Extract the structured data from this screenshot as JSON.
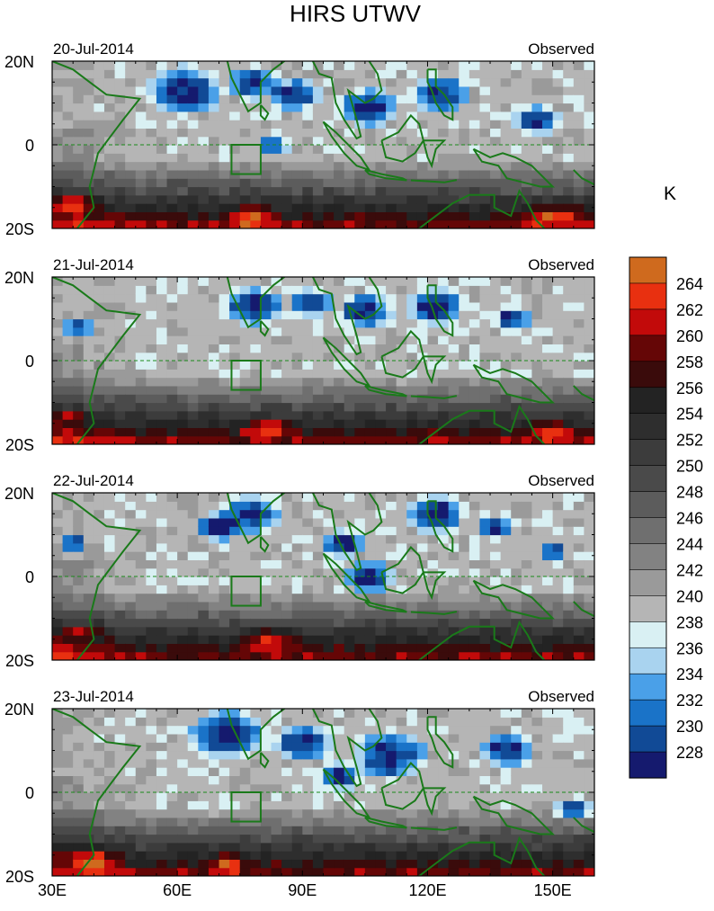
{
  "chart_data": {
    "type": "heatmap",
    "title": "HIRS UTWV",
    "colorbar": {
      "unit_label": "K",
      "levels": [
        "228",
        "230",
        "232",
        "234",
        "236",
        "238",
        "240",
        "242",
        "244",
        "246",
        "248",
        "250",
        "252",
        "254",
        "256",
        "258",
        "260",
        "262",
        "264"
      ],
      "colors": [
        "#151a6e",
        "#114a96",
        "#1a73c8",
        "#4aa0e8",
        "#a9d3ef",
        "#d9f0f3",
        "#b5b5b5",
        "#9a9a9a",
        "#828282",
        "#6f6f6f",
        "#5c5c5c",
        "#4a4a4a",
        "#3c3c3c",
        "#2e2e2e",
        "#232323",
        "#3a0b0b",
        "#650606",
        "#c20a0a",
        "#e83010",
        "#cf6a1e"
      ]
    },
    "x_axis": {
      "range": [
        30,
        160
      ],
      "ticks": [
        30,
        60,
        90,
        120,
        150
      ],
      "tick_labels": [
        "30E",
        "60E",
        "90E",
        "120E",
        "150E"
      ]
    },
    "y_axis": {
      "range": [
        -20,
        20
      ],
      "ticks": [
        20,
        0,
        -20
      ],
      "tick_labels": [
        "20N",
        "0",
        "20S"
      ]
    },
    "box_region": {
      "lon": [
        73,
        80
      ],
      "lat": [
        -7,
        0
      ]
    },
    "panels": [
      {
        "date": "20-Jul-2014",
        "label": "Observed"
      },
      {
        "date": "21-Jul-2014",
        "label": "Observed"
      },
      {
        "date": "22-Jul-2014",
        "label": "Observed"
      },
      {
        "date": "23-Jul-2014",
        "label": "Observed"
      }
    ],
    "moist_centers": [
      [
        [
          62,
          13,
          10
        ],
        [
          78,
          15,
          7
        ],
        [
          88,
          12,
          7
        ],
        [
          106,
          9,
          8
        ],
        [
          123,
          12,
          8
        ],
        [
          146,
          6,
          6
        ],
        [
          83,
          0,
          4
        ]
      ],
      [
        [
          78,
          13,
          8
        ],
        [
          92,
          14,
          6
        ],
        [
          105,
          12,
          7
        ],
        [
          122,
          13,
          8
        ],
        [
          36,
          8,
          4
        ],
        [
          140,
          10,
          5
        ]
      ],
      [
        [
          78,
          15,
          8
        ],
        [
          122,
          15,
          8
        ],
        [
          106,
          0,
          7
        ],
        [
          100,
          8,
          6
        ],
        [
          136,
          12,
          5
        ],
        [
          150,
          6,
          4
        ],
        [
          35,
          8,
          4
        ],
        [
          70,
          12,
          6
        ]
      ],
      [
        [
          72,
          14,
          10
        ],
        [
          90,
          12,
          8
        ],
        [
          111,
          9,
          10
        ],
        [
          139,
          10,
          7
        ],
        [
          155,
          -4,
          5
        ],
        [
          99,
          4,
          6
        ]
      ]
    ]
  }
}
